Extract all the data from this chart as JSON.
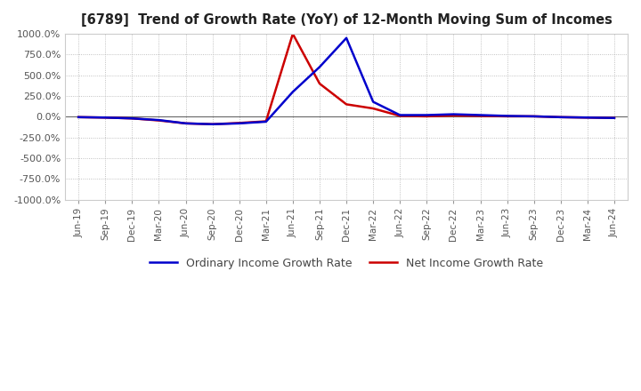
{
  "title": "[6789]  Trend of Growth Rate (YoY) of 12-Month Moving Sum of Incomes",
  "ylim": [
    -1000,
    1000
  ],
  "yticks": [
    -1000,
    -750,
    -500,
    -250,
    0,
    250,
    500,
    750,
    1000
  ],
  "background_color": "#ffffff",
  "plot_bg_color": "#ffffff",
  "grid_color": "#b0b0b0",
  "line_ordinary_color": "#0000cc",
  "line_net_color": "#cc0000",
  "legend_ordinary": "Ordinary Income Growth Rate",
  "legend_net": "Net Income Growth Rate",
  "x_labels": [
    "Jun-19",
    "Sep-19",
    "Dec-19",
    "Mar-20",
    "Jun-20",
    "Sep-20",
    "Dec-20",
    "Mar-21",
    "Jun-21",
    "Sep-21",
    "Dec-21",
    "Mar-22",
    "Jun-22",
    "Sep-22",
    "Dec-22",
    "Mar-23",
    "Jun-23",
    "Sep-23",
    "Dec-23",
    "Mar-24",
    "Jun-24"
  ],
  "ordinary_income_growth": [
    -5,
    -10,
    -20,
    -40,
    -80,
    -90,
    -80,
    -60,
    300,
    600,
    950,
    180,
    20,
    20,
    30,
    20,
    10,
    5,
    -5,
    -10,
    -15
  ],
  "net_income_growth": [
    -5,
    -10,
    -20,
    -45,
    -80,
    -90,
    -75,
    -55,
    1000,
    400,
    150,
    100,
    10,
    5,
    15,
    10,
    5,
    5,
    -5,
    -10,
    -15
  ]
}
